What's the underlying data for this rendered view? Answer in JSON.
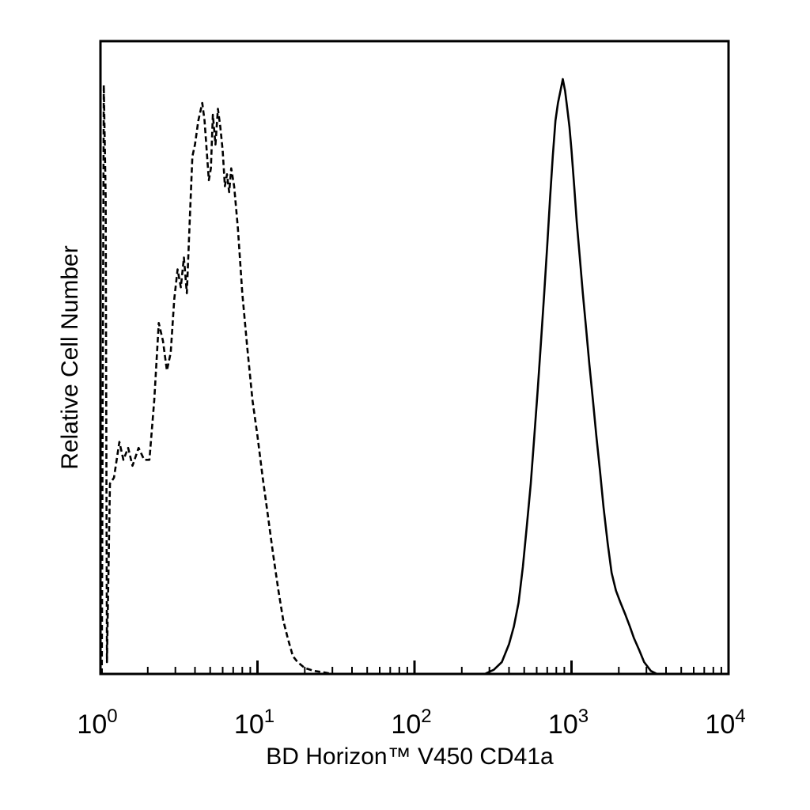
{
  "chart_data": {
    "type": "line",
    "title": "",
    "xlabel": "BD Horizon™ V450 CD41a",
    "ylabel": "Relative Cell Number",
    "xscale": "log",
    "xlim": [
      1,
      10000
    ],
    "ylim": [
      0,
      100
    ],
    "grid": false,
    "legend": "none",
    "x_ticks": [
      {
        "base": "10",
        "exp": "0",
        "value": 1
      },
      {
        "base": "10",
        "exp": "1",
        "value": 10
      },
      {
        "base": "10",
        "exp": "2",
        "value": 100
      },
      {
        "base": "10",
        "exp": "3",
        "value": 1000
      },
      {
        "base": "10",
        "exp": "4",
        "value": 10000
      }
    ],
    "series": [
      {
        "style": "dashed",
        "color": "#000000",
        "points": [
          [
            1.02,
            0
          ],
          [
            1.05,
            99
          ],
          [
            1.08,
            80
          ],
          [
            1.1,
            2
          ],
          [
            1.15,
            32
          ],
          [
            1.22,
            33
          ],
          [
            1.32,
            39
          ],
          [
            1.4,
            36
          ],
          [
            1.5,
            38
          ],
          [
            1.6,
            35
          ],
          [
            1.75,
            38
          ],
          [
            1.9,
            36
          ],
          [
            2.05,
            36
          ],
          [
            2.2,
            46
          ],
          [
            2.35,
            59
          ],
          [
            2.5,
            56
          ],
          [
            2.65,
            51
          ],
          [
            2.8,
            54
          ],
          [
            2.95,
            63
          ],
          [
            3.1,
            68
          ],
          [
            3.25,
            65
          ],
          [
            3.4,
            70
          ],
          [
            3.55,
            64
          ],
          [
            3.7,
            76
          ],
          [
            3.85,
            87
          ],
          [
            4.0,
            89
          ],
          [
            4.2,
            93
          ],
          [
            4.45,
            96
          ],
          [
            4.6,
            93
          ],
          [
            4.75,
            88
          ],
          [
            4.9,
            83
          ],
          [
            5.05,
            85
          ],
          [
            5.2,
            94
          ],
          [
            5.4,
            89
          ],
          [
            5.6,
            95
          ],
          [
            5.8,
            92
          ],
          [
            6.0,
            88
          ],
          [
            6.2,
            82
          ],
          [
            6.4,
            84
          ],
          [
            6.6,
            81
          ],
          [
            6.8,
            85
          ],
          [
            7.1,
            82
          ],
          [
            7.5,
            75
          ],
          [
            8.0,
            64
          ],
          [
            8.6,
            55
          ],
          [
            9.3,
            46
          ],
          [
            10.0,
            40
          ],
          [
            10.8,
            33
          ],
          [
            11.6,
            27
          ],
          [
            12.6,
            20
          ],
          [
            13.6,
            14
          ],
          [
            14.6,
            9
          ],
          [
            15.6,
            6
          ],
          [
            16.8,
            3
          ],
          [
            18.0,
            2
          ],
          [
            20.0,
            1
          ],
          [
            23.0,
            0.5
          ],
          [
            26.0,
            0.3
          ],
          [
            30.0,
            0
          ],
          [
            10000,
            0
          ]
        ]
      },
      {
        "style": "solid",
        "color": "#000000",
        "points": [
          [
            1,
            0
          ],
          [
            280,
            0
          ],
          [
            320,
            0.7
          ],
          [
            360,
            2
          ],
          [
            400,
            5
          ],
          [
            430,
            8
          ],
          [
            460,
            12
          ],
          [
            490,
            18
          ],
          [
            520,
            25
          ],
          [
            550,
            32
          ],
          [
            580,
            40
          ],
          [
            610,
            48
          ],
          [
            640,
            56
          ],
          [
            670,
            64
          ],
          [
            700,
            72
          ],
          [
            730,
            80
          ],
          [
            760,
            87
          ],
          [
            790,
            93
          ],
          [
            820,
            96
          ],
          [
            850,
            98
          ],
          [
            880,
            100
          ],
          [
            910,
            98
          ],
          [
            940,
            95
          ],
          [
            970,
            92
          ],
          [
            1000,
            88
          ],
          [
            1040,
            82
          ],
          [
            1080,
            76
          ],
          [
            1130,
            70
          ],
          [
            1180,
            64
          ],
          [
            1240,
            58
          ],
          [
            1300,
            52
          ],
          [
            1370,
            46
          ],
          [
            1440,
            40
          ],
          [
            1520,
            34
          ],
          [
            1600,
            28
          ],
          [
            1700,
            22
          ],
          [
            1800,
            17
          ],
          [
            1920,
            14
          ],
          [
            2050,
            12
          ],
          [
            2200,
            10
          ],
          [
            2350,
            8
          ],
          [
            2500,
            6
          ],
          [
            2700,
            4
          ],
          [
            2900,
            2
          ],
          [
            3200,
            0.5
          ],
          [
            3500,
            0
          ],
          [
            10000,
            0
          ]
        ]
      }
    ]
  }
}
